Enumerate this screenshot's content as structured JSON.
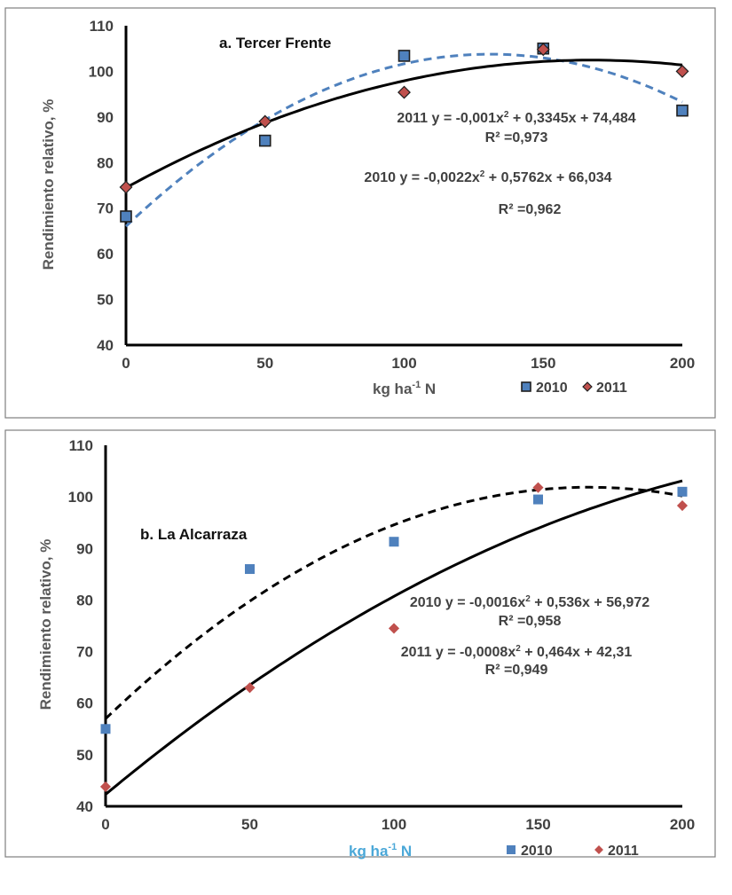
{
  "chart_data": [
    {
      "type": "scatter",
      "title": "a. Tercer Frente",
      "ylabel": "Rendimiento relativo, %",
      "xlabel_main": "kg ha",
      "xlabel_sup": "-1",
      "xlabel_tail": " N",
      "xlim": [
        0,
        200
      ],
      "ylim": [
        40,
        110
      ],
      "x_ticks": [
        "0",
        "50",
        "100",
        "150",
        "200"
      ],
      "y_ticks": [
        "40",
        "50",
        "60",
        "70",
        "80",
        "90",
        "100",
        "110"
      ],
      "grid": false,
      "legend": "bottom-right",
      "series": [
        {
          "name": "2010",
          "marker": "square",
          "color": "#4f81bd",
          "edge": "#1f1f1f",
          "x": [
            0,
            50,
            100,
            150,
            200
          ],
          "y": [
            68.2,
            84.8,
            103.4,
            105,
            91.4
          ],
          "trend": {
            "a": -0.0022,
            "b": 0.5762,
            "c": 66.034,
            "style": "dashed",
            "color": "#4f81bd"
          }
        },
        {
          "name": "2011",
          "marker": "diamond",
          "color": "#c0504d",
          "edge": "#1f1f1f",
          "x": [
            0,
            50,
            100,
            150,
            200
          ],
          "y": [
            74.6,
            89,
            95.4,
            104.8,
            100
          ],
          "trend": {
            "a": -0.001,
            "b": 0.3345,
            "c": 74.484,
            "style": "solid",
            "color": "#000000"
          }
        }
      ],
      "annotations": [
        {
          "id": "eq2011",
          "pre": "2011 y = -0,001x",
          "sup": "2",
          "post": " + 0,3345x + 74,484"
        },
        {
          "id": "r2011",
          "pre": "R² =0,973",
          "sup": "",
          "post": ""
        },
        {
          "id": "eq2010",
          "pre": "2010 y = -0,0022x",
          "sup": "2",
          "post": " + 0,5762x + 66,034"
        },
        {
          "id": "r2010",
          "pre": "R² =0,962",
          "sup": "",
          "post": ""
        }
      ]
    },
    {
      "type": "scatter",
      "title": "b. La Alcarraza",
      "ylabel": "Rendimiento relativo, %",
      "xlabel_main": "kg ha",
      "xlabel_sup": "-1",
      "xlabel_tail": " N",
      "xlabel_color": "#4ba8d8",
      "xlim": [
        0,
        200
      ],
      "ylim": [
        40,
        110
      ],
      "x_ticks": [
        "0",
        "50",
        "100",
        "150",
        "200"
      ],
      "y_ticks": [
        "40",
        "50",
        "60",
        "70",
        "80",
        "90",
        "100",
        "110"
      ],
      "grid": false,
      "legend": "bottom-right",
      "series": [
        {
          "name": "2010",
          "marker": "square",
          "color": "#4f81bd",
          "edge": "",
          "x": [
            0,
            50,
            100,
            150,
            200
          ],
          "y": [
            55,
            86,
            91.3,
            99.5,
            101
          ],
          "trend": {
            "a": -0.0016,
            "b": 0.536,
            "c": 56.972,
            "style": "dashed",
            "color": "#000000"
          }
        },
        {
          "name": "2011",
          "marker": "diamond",
          "color": "#c0504d",
          "edge": "",
          "x": [
            0,
            50,
            100,
            150,
            200
          ],
          "y": [
            43.8,
            63,
            74.5,
            101.8,
            98.3
          ],
          "trend": {
            "a": -0.0008,
            "b": 0.464,
            "c": 42.31,
            "style": "solid",
            "color": "#000000"
          }
        }
      ],
      "annotations": [
        {
          "id": "eq2010",
          "pre": "2010 y = -0,0016x",
          "sup": "2",
          "post": " + 0,536x + 56,972"
        },
        {
          "id": "r2010",
          "pre": "R² =0,958",
          "sup": "",
          "post": ""
        },
        {
          "id": "eq2011",
          "pre": "2011 y = -0,0008x",
          "sup": "2",
          "post": " + 0,464x + 42,31"
        },
        {
          "id": "r2011",
          "pre": "R² =0,949",
          "sup": "",
          "post": ""
        }
      ]
    }
  ]
}
